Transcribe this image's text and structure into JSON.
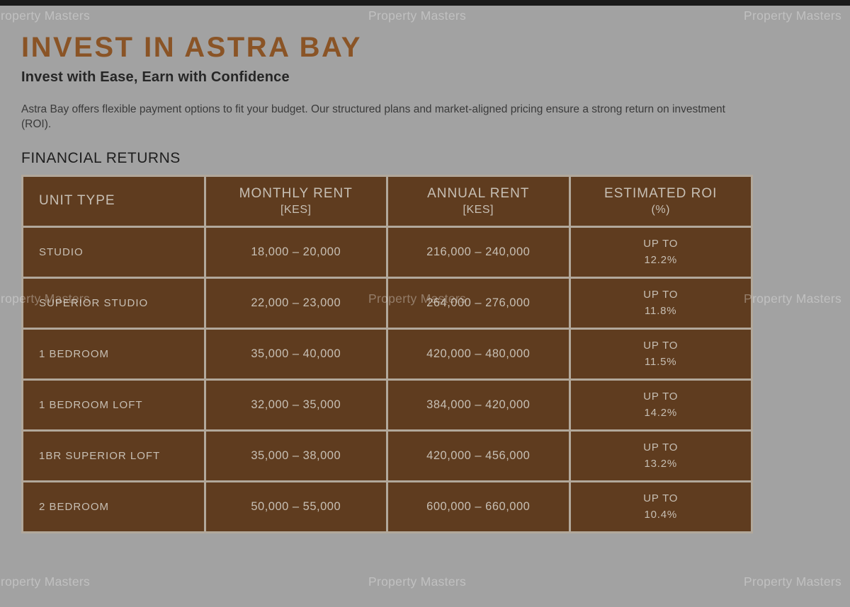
{
  "watermark": {
    "text": "Property Masters"
  },
  "colors": {
    "background": "#a2a2a2",
    "top_bar": "#1a1a1a",
    "title_accent": "#8a5426",
    "table_cell": "#5f3c1f",
    "table_border": "#b2a89b",
    "table_text": "#c7bfb4"
  },
  "page": {
    "title": "INVEST IN ASTRA BAY",
    "subtitle": "Invest with Ease, Earn with Confidence",
    "intro": "Astra Bay offers flexible payment options to fit your budget. Our structured plans and market-aligned pricing ensure a strong return on investment (ROI).",
    "section_heading": "FINANCIAL RETURNS"
  },
  "table": {
    "headers": [
      {
        "line1": "UNIT TYPE",
        "line2": ""
      },
      {
        "line1": "MONTHLY RENT",
        "line2": "[KES]"
      },
      {
        "line1": "ANNUAL RENT",
        "line2": "[KES]"
      },
      {
        "line1": "ESTIMATED ROI",
        "line2": "(%)"
      }
    ],
    "rows": [
      {
        "unit": "STUDIO",
        "monthly": "18,000 – 20,000",
        "annual": "216,000 – 240,000",
        "roi_prefix": "UP TO",
        "roi_value": "12.2%"
      },
      {
        "unit": "SUPERIOR STUDIO",
        "monthly": "22,000 – 23,000",
        "annual": "264,000 – 276,000",
        "roi_prefix": "UP TO",
        "roi_value": "11.8%"
      },
      {
        "unit": "1 BEDROOM",
        "monthly": "35,000 – 40,000",
        "annual": "420,000 – 480,000",
        "roi_prefix": "UP TO",
        "roi_value": "11.5%"
      },
      {
        "unit": "1 BEDROOM LOFT",
        "monthly": "32,000 – 35,000",
        "annual": "384,000 – 420,000",
        "roi_prefix": "UP TO",
        "roi_value": "14.2%"
      },
      {
        "unit": "1BR SUPERIOR LOFT",
        "monthly": "35,000 – 38,000",
        "annual": "420,000 – 456,000",
        "roi_prefix": "UP TO",
        "roi_value": "13.2%"
      },
      {
        "unit": "2 BEDROOM",
        "monthly": "50,000 – 55,000",
        "annual": "600,000 – 660,000",
        "roi_prefix": "UP TO",
        "roi_value": "10.4%"
      }
    ]
  }
}
